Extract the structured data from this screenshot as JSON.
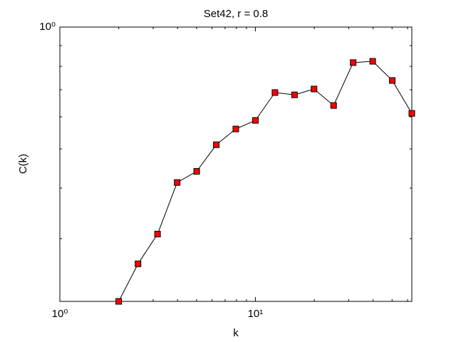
{
  "chart_data": {
    "type": "line",
    "title": "Set42, r = 0.8",
    "xlabel": "k",
    "ylabel": "C(k)",
    "x": [
      2,
      2.51,
      3.16,
      3.98,
      5.01,
      6.31,
      7.94,
      10,
      12.59,
      15.85,
      19.95,
      25.12,
      31.62,
      39.81,
      50.12,
      63.1
    ],
    "series": [
      {
        "color": "#ff0000",
        "line_color": "#000000",
        "values": [
          0.21,
          0.26,
          0.308,
          0.413,
          0.44,
          0.512,
          0.56,
          0.588,
          0.689,
          0.68,
          0.703,
          0.64,
          0.817,
          0.823,
          0.738,
          0.612
        ]
      }
    ],
    "xscale": "log",
    "yscale": "log",
    "xlim": [
      1,
      63.1
    ],
    "ylim": [
      0.21,
      1
    ],
    "xticks": [
      {
        "value": 1,
        "label": "10⁰"
      },
      {
        "value": 10,
        "label": "10¹"
      }
    ],
    "yticks": [
      {
        "value": 1,
        "label": "10⁰"
      }
    ],
    "xminorticks": [
      2,
      3,
      4,
      5,
      6,
      7,
      8,
      9,
      20,
      30,
      40,
      50,
      60
    ],
    "yminorticks": [
      0.3,
      0.4,
      0.5,
      0.6,
      0.7,
      0.8,
      0.9
    ]
  }
}
